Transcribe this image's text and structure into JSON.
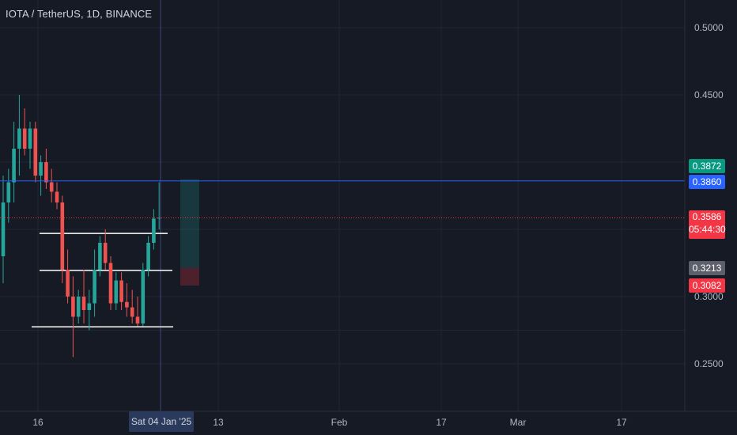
{
  "header": {
    "title": "IOTA / TetherUS, 1D, BINANCE"
  },
  "colors": {
    "background": "#161a25",
    "up": "#26a69a",
    "down": "#ef5350",
    "grid": "#222634",
    "axis_text": "#b2b5be",
    "blue_line": "#2962ff"
  },
  "price_tags": {
    "green": "0.3872",
    "blue": "0.3860",
    "current": "0.3586",
    "countdown": "05:44:30",
    "gray": "0.3213",
    "red": "0.3082"
  },
  "crosshair": {
    "date_label": "Sat 04 Jan '25"
  },
  "chart_data": {
    "type": "candlestick",
    "title": "IOTA / TetherUS, 1D, BINANCE",
    "y_ticks": [
      "0.5000",
      "0.4500",
      "0.3000",
      "0.2500"
    ],
    "ylim": [
      0.22,
      0.52
    ],
    "x_ticks": [
      "16",
      "13",
      "Feb",
      "17",
      "Mar",
      "17"
    ],
    "candles": [
      {
        "o": 0.33,
        "h": 0.39,
        "l": 0.31,
        "c": 0.37
      },
      {
        "o": 0.37,
        "h": 0.395,
        "l": 0.355,
        "c": 0.385
      },
      {
        "o": 0.385,
        "h": 0.43,
        "l": 0.37,
        "c": 0.41
      },
      {
        "o": 0.41,
        "h": 0.45,
        "l": 0.39,
        "c": 0.425
      },
      {
        "o": 0.425,
        "h": 0.44,
        "l": 0.405,
        "c": 0.41
      },
      {
        "o": 0.41,
        "h": 0.43,
        "l": 0.395,
        "c": 0.425
      },
      {
        "o": 0.425,
        "h": 0.43,
        "l": 0.385,
        "c": 0.39
      },
      {
        "o": 0.39,
        "h": 0.405,
        "l": 0.375,
        "c": 0.4
      },
      {
        "o": 0.4,
        "h": 0.41,
        "l": 0.38,
        "c": 0.385
      },
      {
        "o": 0.385,
        "h": 0.395,
        "l": 0.37,
        "c": 0.378
      },
      {
        "o": 0.378,
        "h": 0.385,
        "l": 0.365,
        "c": 0.37
      },
      {
        "o": 0.37,
        "h": 0.375,
        "l": 0.31,
        "c": 0.32
      },
      {
        "o": 0.32,
        "h": 0.335,
        "l": 0.295,
        "c": 0.3
      },
      {
        "o": 0.3,
        "h": 0.315,
        "l": 0.255,
        "c": 0.285
      },
      {
        "o": 0.285,
        "h": 0.305,
        "l": 0.28,
        "c": 0.3
      },
      {
        "o": 0.3,
        "h": 0.32,
        "l": 0.28,
        "c": 0.29
      },
      {
        "o": 0.29,
        "h": 0.305,
        "l": 0.275,
        "c": 0.295
      },
      {
        "o": 0.295,
        "h": 0.335,
        "l": 0.285,
        "c": 0.32
      },
      {
        "o": 0.32,
        "h": 0.345,
        "l": 0.315,
        "c": 0.34
      },
      {
        "o": 0.34,
        "h": 0.35,
        "l": 0.32,
        "c": 0.325
      },
      {
        "o": 0.325,
        "h": 0.33,
        "l": 0.29,
        "c": 0.295
      },
      {
        "o": 0.295,
        "h": 0.318,
        "l": 0.29,
        "c": 0.312
      },
      {
        "o": 0.312,
        "h": 0.318,
        "l": 0.29,
        "c": 0.296
      },
      {
        "o": 0.296,
        "h": 0.31,
        "l": 0.285,
        "c": 0.292
      },
      {
        "o": 0.292,
        "h": 0.305,
        "l": 0.28,
        "c": 0.285
      },
      {
        "o": 0.285,
        "h": 0.3,
        "l": 0.278,
        "c": 0.28
      },
      {
        "o": 0.28,
        "h": 0.325,
        "l": 0.278,
        "c": 0.32
      },
      {
        "o": 0.32,
        "h": 0.345,
        "l": 0.315,
        "c": 0.34
      },
      {
        "o": 0.34,
        "h": 0.365,
        "l": 0.335,
        "c": 0.358
      },
      {
        "o": 0.358,
        "h": 0.385,
        "l": 0.35,
        "c": 0.3586
      }
    ],
    "horizontal_levels": [
      {
        "price": 0.386,
        "color": "#2962ff"
      },
      {
        "price": 0.3586,
        "color": "#f23645",
        "style": "dotted"
      }
    ],
    "drawn_levels": [
      0.347,
      0.3195,
      0.2775
    ],
    "position_tool": {
      "entry": 0.3213,
      "target": 0.3872,
      "stop": 0.3082
    }
  }
}
